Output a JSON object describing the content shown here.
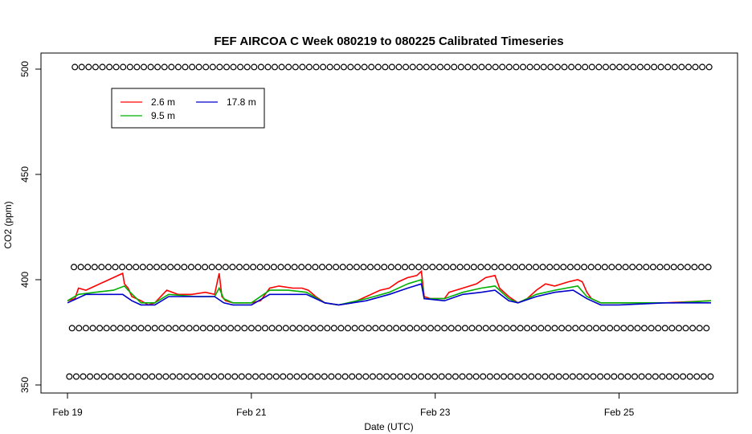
{
  "chart_data": {
    "type": "line",
    "title": "FEF AIRCOA C  Week 080219 to 080225  Calibrated Timeseries",
    "xlabel": "Date (UTC)",
    "ylabel": "CO2 (ppm)",
    "x_range_days": [
      0,
      7
    ],
    "ylim": [
      348,
      503
    ],
    "x_ticks": [
      {
        "day": 0,
        "label": "Feb 19"
      },
      {
        "day": 2,
        "label": "Feb 21"
      },
      {
        "day": 4,
        "label": "Feb 23"
      },
      {
        "day": 6,
        "label": "Feb 25"
      }
    ],
    "y_ticks": [
      350,
      400,
      450,
      500
    ],
    "grid": false,
    "legend_position": "top-left",
    "series": [
      {
        "name": "2.6 m",
        "color": "#ff0000",
        "points": [
          [
            0,
            390
          ],
          [
            0.08,
            391
          ],
          [
            0.12,
            396
          ],
          [
            0.2,
            395
          ],
          [
            0.3,
            397
          ],
          [
            0.4,
            399
          ],
          [
            0.5,
            401
          ],
          [
            0.6,
            403
          ],
          [
            0.62,
            398
          ],
          [
            0.66,
            396
          ],
          [
            0.7,
            392
          ],
          [
            0.8,
            390
          ],
          [
            0.88,
            388
          ],
          [
            0.95,
            389
          ],
          [
            1.08,
            395
          ],
          [
            1.2,
            393
          ],
          [
            1.35,
            393
          ],
          [
            1.5,
            394
          ],
          [
            1.6,
            393
          ],
          [
            1.65,
            403
          ],
          [
            1.68,
            392
          ],
          [
            1.72,
            390
          ],
          [
            1.8,
            389
          ],
          [
            2.0,
            389
          ],
          [
            2.1,
            390
          ],
          [
            2.2,
            396
          ],
          [
            2.3,
            397
          ],
          [
            2.45,
            396
          ],
          [
            2.55,
            396
          ],
          [
            2.62,
            395
          ],
          [
            2.7,
            392
          ],
          [
            2.8,
            389
          ],
          [
            2.95,
            388
          ],
          [
            3.1,
            389
          ],
          [
            3.25,
            392
          ],
          [
            3.4,
            395
          ],
          [
            3.5,
            396
          ],
          [
            3.6,
            399
          ],
          [
            3.7,
            401
          ],
          [
            3.8,
            402
          ],
          [
            3.85,
            404
          ],
          [
            3.88,
            392
          ],
          [
            3.95,
            391
          ],
          [
            4.1,
            391
          ],
          [
            4.15,
            394
          ],
          [
            4.3,
            396
          ],
          [
            4.45,
            398
          ],
          [
            4.55,
            401
          ],
          [
            4.65,
            402
          ],
          [
            4.7,
            396
          ],
          [
            4.8,
            392
          ],
          [
            4.9,
            389
          ],
          [
            5.0,
            391
          ],
          [
            5.1,
            395
          ],
          [
            5.2,
            398
          ],
          [
            5.3,
            397
          ],
          [
            5.45,
            399
          ],
          [
            5.55,
            400
          ],
          [
            5.6,
            399
          ],
          [
            5.65,
            394
          ],
          [
            5.7,
            391
          ],
          [
            5.8,
            389
          ],
          [
            6.0,
            389
          ],
          [
            6.5,
            389
          ],
          [
            7.0,
            390
          ]
        ]
      },
      {
        "name": "9.5 m",
        "color": "#00b000",
        "points": [
          [
            0,
            390
          ],
          [
            0.12,
            393
          ],
          [
            0.3,
            394
          ],
          [
            0.5,
            395
          ],
          [
            0.62,
            397
          ],
          [
            0.66,
            395
          ],
          [
            0.8,
            389
          ],
          [
            0.95,
            389
          ],
          [
            1.1,
            393
          ],
          [
            1.4,
            392
          ],
          [
            1.6,
            392
          ],
          [
            1.65,
            396
          ],
          [
            1.7,
            391
          ],
          [
            1.8,
            389
          ],
          [
            2.0,
            389
          ],
          [
            2.2,
            395
          ],
          [
            2.4,
            395
          ],
          [
            2.6,
            394
          ],
          [
            2.8,
            389
          ],
          [
            2.95,
            388
          ],
          [
            3.25,
            391
          ],
          [
            3.5,
            394
          ],
          [
            3.7,
            398
          ],
          [
            3.85,
            400
          ],
          [
            3.88,
            391
          ],
          [
            4.1,
            391
          ],
          [
            4.3,
            394
          ],
          [
            4.5,
            396
          ],
          [
            4.65,
            397
          ],
          [
            4.8,
            391
          ],
          [
            4.9,
            389
          ],
          [
            5.1,
            393
          ],
          [
            5.3,
            395
          ],
          [
            5.55,
            397
          ],
          [
            5.65,
            392
          ],
          [
            5.8,
            389
          ],
          [
            6.0,
            389
          ],
          [
            6.6,
            389
          ],
          [
            7.0,
            390
          ]
        ]
      },
      {
        "name": "17.8 m",
        "color": "#0000cc",
        "points": [
          [
            0,
            389
          ],
          [
            0.1,
            391
          ],
          [
            0.2,
            393
          ],
          [
            0.4,
            393
          ],
          [
            0.6,
            393
          ],
          [
            0.7,
            390
          ],
          [
            0.8,
            388
          ],
          [
            0.95,
            388
          ],
          [
            1.1,
            392
          ],
          [
            1.3,
            392
          ],
          [
            1.6,
            392
          ],
          [
            1.7,
            389
          ],
          [
            1.8,
            388
          ],
          [
            2.0,
            388
          ],
          [
            2.2,
            393
          ],
          [
            2.4,
            393
          ],
          [
            2.6,
            393
          ],
          [
            2.8,
            389
          ],
          [
            2.95,
            388
          ],
          [
            3.25,
            390
          ],
          [
            3.5,
            393
          ],
          [
            3.7,
            396
          ],
          [
            3.85,
            398
          ],
          [
            3.88,
            391
          ],
          [
            4.1,
            390
          ],
          [
            4.3,
            393
          ],
          [
            4.5,
            394
          ],
          [
            4.65,
            395
          ],
          [
            4.8,
            390
          ],
          [
            4.9,
            389
          ],
          [
            5.1,
            392
          ],
          [
            5.3,
            394
          ],
          [
            5.5,
            395
          ],
          [
            5.65,
            391
          ],
          [
            5.8,
            388
          ],
          [
            6.0,
            388
          ],
          [
            6.5,
            389
          ],
          [
            7.0,
            389
          ]
        ]
      }
    ],
    "markers": [
      {
        "name": "",
        "level": 501,
        "x_start": 0.08,
        "x_end": 7.0,
        "spacing": 0.075
      },
      {
        "name": "",
        "level": 406,
        "x_start": 0.07,
        "x_end": 7.0,
        "spacing": 0.075
      },
      {
        "name": "",
        "level": 377,
        "x_start": 0.05,
        "x_end": 7.0,
        "spacing": 0.075
      },
      {
        "name": "",
        "level": 354,
        "x_start": 0.02,
        "x_end": 7.0,
        "spacing": 0.075
      }
    ]
  }
}
